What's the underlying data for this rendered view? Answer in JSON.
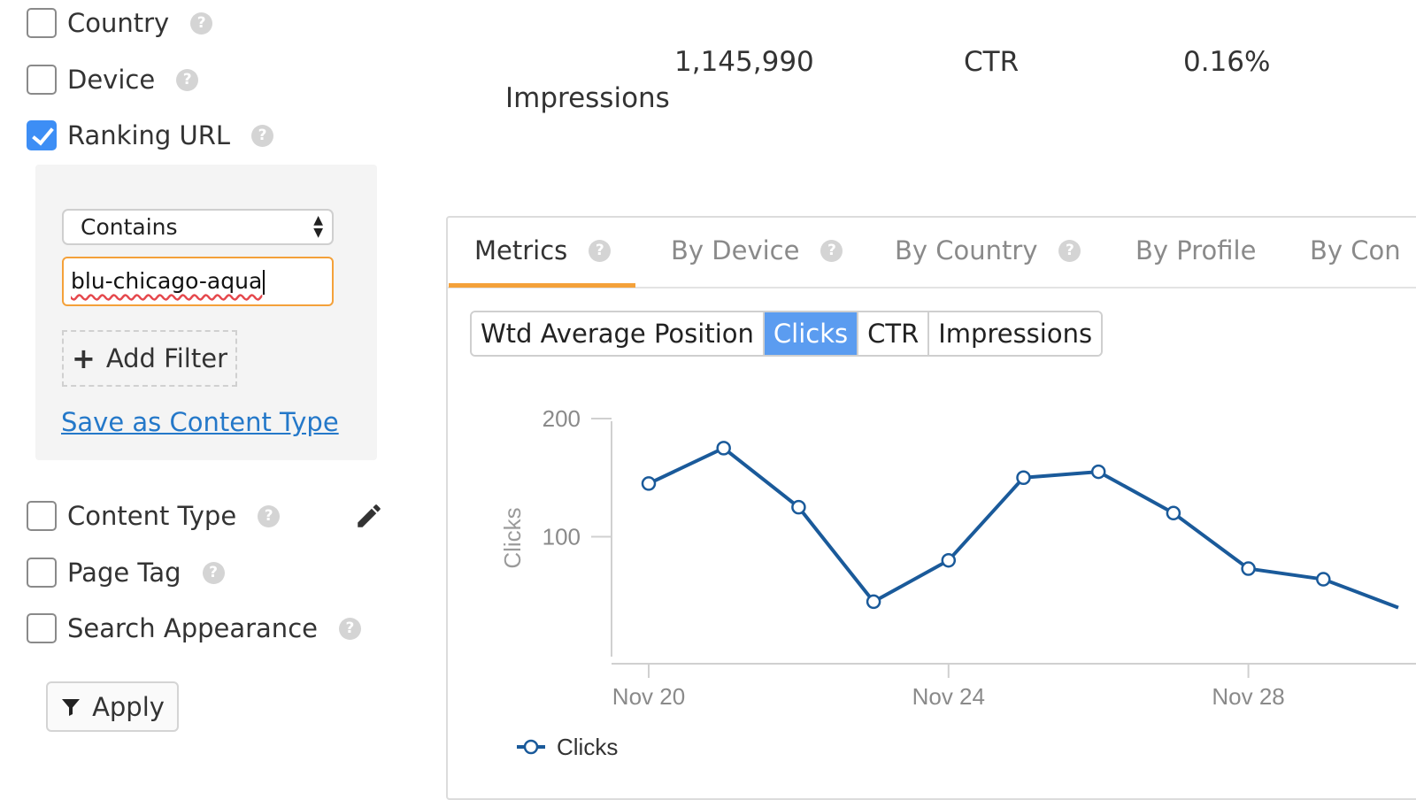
{
  "sidebar": {
    "filters_top": [
      {
        "label": "Country",
        "checked": false
      },
      {
        "label": "Device",
        "checked": false
      },
      {
        "label": "Ranking URL",
        "checked": true
      }
    ],
    "ranking_url_filter": {
      "operator": "Contains",
      "value": "blu-chicago-aqua",
      "add_filter_label": "Add Filter",
      "save_link": "Save as Content Type"
    },
    "filters_bottom": [
      {
        "label": "Content Type",
        "checked": false
      },
      {
        "label": "Page Tag",
        "checked": false
      },
      {
        "label": "Search Appearance",
        "checked": false
      }
    ],
    "apply_label": "Apply"
  },
  "summary": {
    "impressions_value": "1,145,990",
    "impressions_label": "Impressions",
    "ctr_label": "CTR",
    "ctr_value": "0.16%"
  },
  "tabs": [
    "Metrics",
    "By Device",
    "By Country",
    "By Profile",
    "By Con"
  ],
  "metric_toggle": [
    "Wtd Average Position",
    "Clicks",
    "CTR",
    "Impressions"
  ],
  "active_metric": "Clicks",
  "colors": {
    "accent_orange": "#f4a13a",
    "active_blue": "#5b9cf0",
    "line_blue": "#1a5a9a"
  },
  "chart_data": {
    "type": "line",
    "ylabel": "Clicks",
    "y_ticks": [
      100,
      200
    ],
    "x_tick_labels": [
      "Nov 20",
      "Nov 24",
      "Nov 28"
    ],
    "x_tick_days": [
      20,
      24,
      28
    ],
    "ylim": [
      0,
      200
    ],
    "series": [
      {
        "name": "Clicks",
        "x": [
          20,
          21,
          22,
          23,
          24,
          25,
          26,
          27,
          28,
          29,
          30
        ],
        "values": [
          145,
          175,
          125,
          45,
          80,
          150,
          155,
          120,
          73,
          64,
          40
        ]
      }
    ],
    "legend": "bottom-left"
  }
}
